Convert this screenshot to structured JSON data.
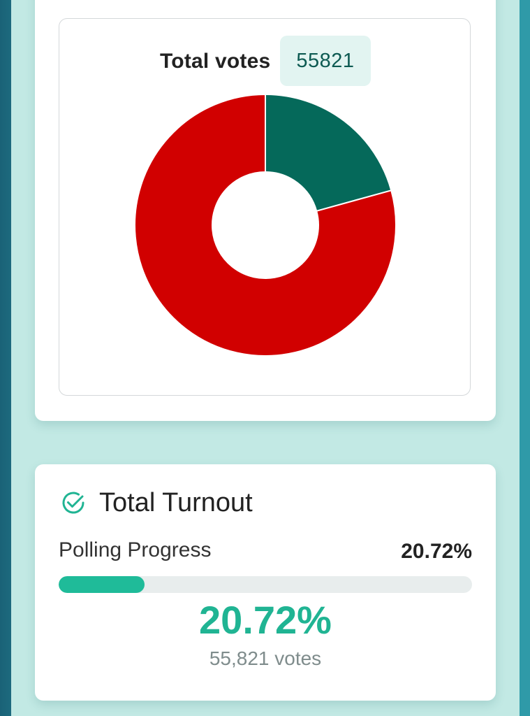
{
  "summary": {
    "total_votes_label": "Total votes",
    "total_votes_value": "55821"
  },
  "chart_data": {
    "type": "pie",
    "title": "",
    "slices": [
      {
        "value": 20.72,
        "color": "#05695a"
      },
      {
        "value": 79.28,
        "color": "#d10000"
      }
    ],
    "donut": true
  },
  "turnout": {
    "title": "Total Turnout",
    "icon": "check-circle-icon",
    "progress_label": "Polling Progress",
    "progress_percent_text": "20.72%",
    "progress_fraction": 0.2072,
    "big_percent": "20.72%",
    "votes_text": "55,821 votes"
  },
  "colors": {
    "accent": "#1fbb99",
    "badge_bg": "#e2f4f1",
    "badge_text": "#0d5a52"
  }
}
